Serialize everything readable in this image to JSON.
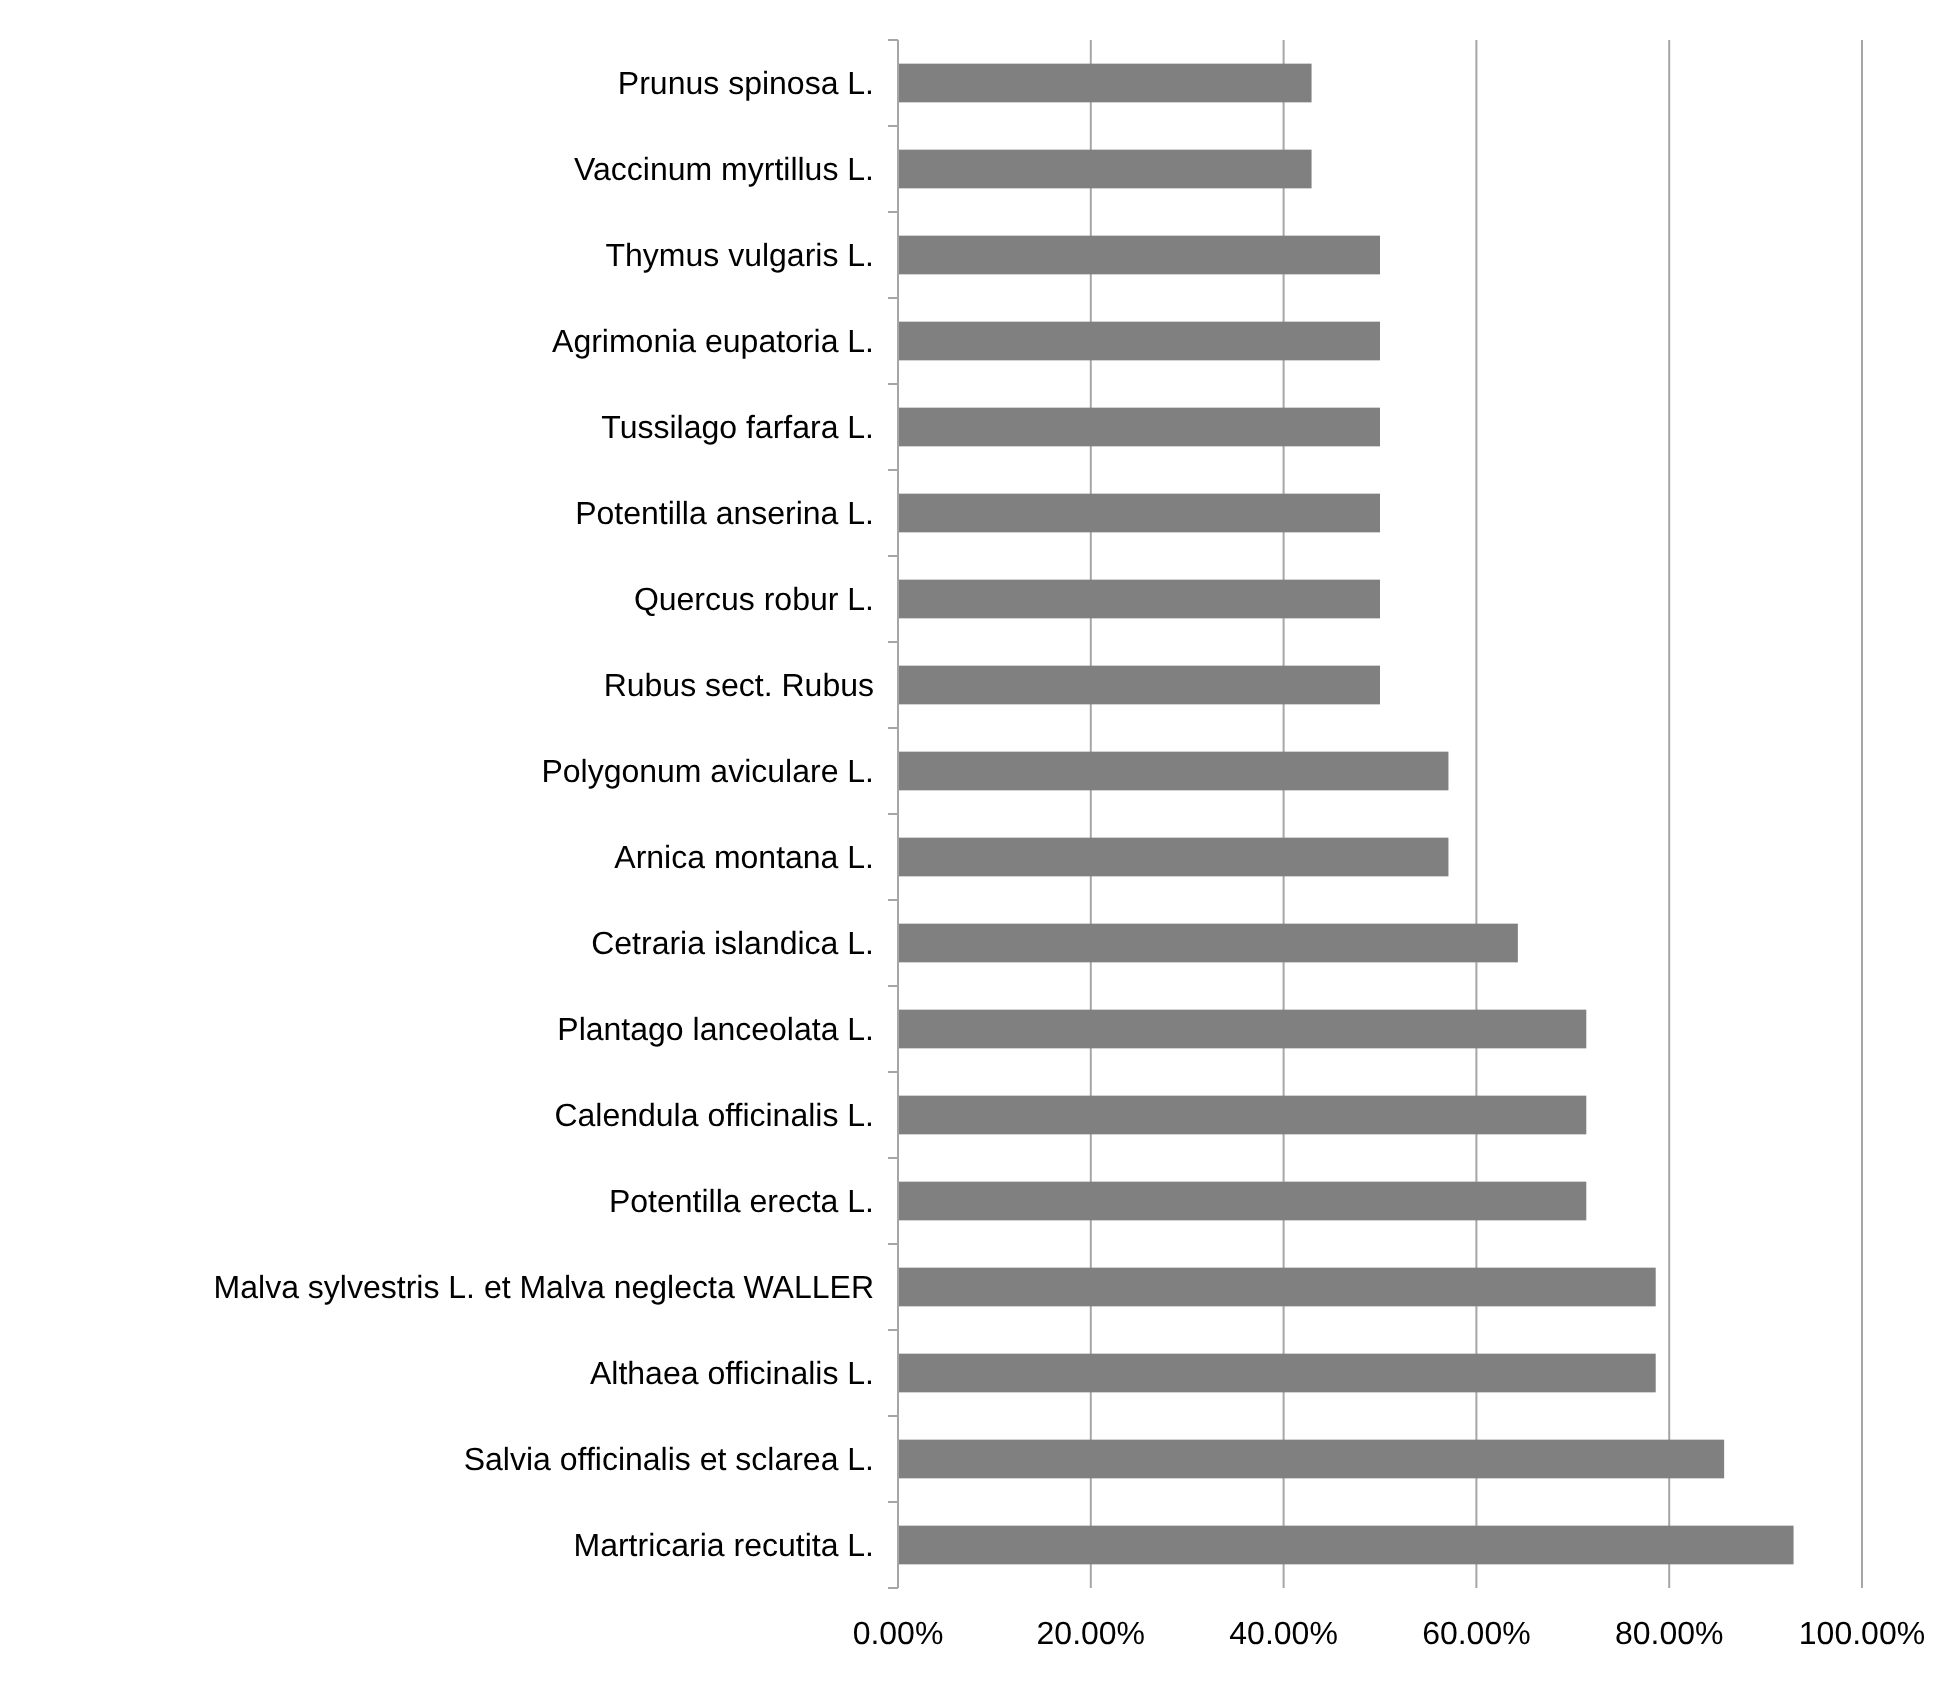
{
  "chart_data": {
    "type": "bar",
    "orientation": "horizontal",
    "categories": [
      "Prunus spinosa L.",
      "Vaccinum myrtillus L.",
      "Thymus vulgaris L.",
      "Agrimonia eupatoria L.",
      "Tussilago farfara L.",
      "Potentilla anserina L.",
      "Quercus robur L.",
      "Rubus sect. Rubus",
      "Polygonum aviculare L.",
      "Arnica montana L.",
      "Cetraria islandica L.",
      "Plantago lanceolata L.",
      "Calendula officinalis L.",
      "Potentilla erecta L.",
      "Malva sylvestris L. et Malva neglecta WALLER",
      "Althaea officinalis L.",
      "Salvia officinalis et sclarea L.",
      "Martricaria recutita L."
    ],
    "values": [
      42.9,
      42.9,
      50,
      50,
      50,
      50,
      50,
      50,
      57.1,
      57.1,
      64.3,
      71.4,
      71.4,
      71.4,
      78.6,
      78.6,
      85.7,
      92.9
    ],
    "color": "#808080",
    "xlim": [
      0,
      100
    ],
    "xticks": [
      {
        "value": 0,
        "label": "0.00%"
      },
      {
        "value": 20,
        "label": "20.00%"
      },
      {
        "value": 40,
        "label": "40.00%"
      },
      {
        "value": 60,
        "label": "60.00%"
      },
      {
        "value": 80,
        "label": "80.00%"
      },
      {
        "value": 100,
        "label": "100.00%"
      }
    ],
    "grid": "x"
  }
}
